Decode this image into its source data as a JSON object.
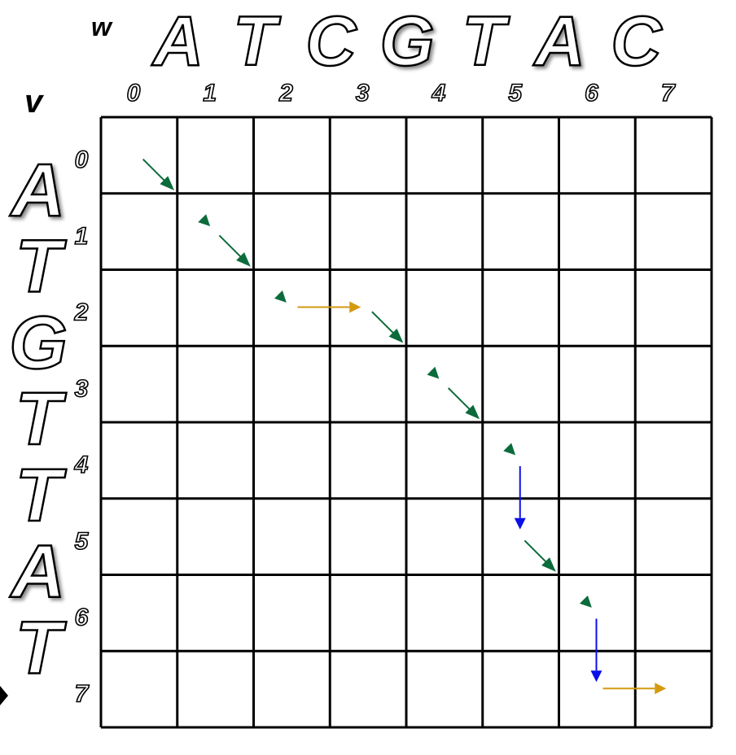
{
  "w_label": "w",
  "v_label": "v",
  "w_sequence": [
    "A",
    "T",
    "C",
    "G",
    "T",
    "A",
    "C"
  ],
  "v_sequence": [
    "A",
    "T",
    "G",
    "T",
    "T",
    "A",
    "T"
  ],
  "col_indices": [
    "0",
    "1",
    "2",
    "3",
    "4",
    "5",
    "6",
    "7"
  ],
  "row_indices": [
    "0",
    "1",
    "2",
    "3",
    "4",
    "5",
    "6",
    "7"
  ],
  "path": [
    {
      "from": [
        0,
        0
      ],
      "to": [
        1,
        1
      ],
      "kind": "match"
    },
    {
      "from": [
        1,
        1
      ],
      "to": [
        2,
        2
      ],
      "kind": "match"
    },
    {
      "from": [
        2,
        2
      ],
      "to": [
        2,
        3
      ],
      "kind": "insertion"
    },
    {
      "from": [
        2,
        3
      ],
      "to": [
        3,
        4
      ],
      "kind": "match"
    },
    {
      "from": [
        3,
        4
      ],
      "to": [
        4,
        5
      ],
      "kind": "match"
    },
    {
      "from": [
        4,
        5
      ],
      "to": [
        5,
        5
      ],
      "kind": "deletion"
    },
    {
      "from": [
        5,
        5
      ],
      "to": [
        6,
        6
      ],
      "kind": "match"
    },
    {
      "from": [
        6,
        6
      ],
      "to": [
        7,
        6
      ],
      "kind": "deletion"
    },
    {
      "from": [
        7,
        6
      ],
      "to": [
        7,
        7
      ],
      "kind": "insertion"
    }
  ],
  "colors": {
    "match": "#0b6b3a",
    "insertion": "#d49a10",
    "deletion": "#0a10e8",
    "grid": "#000000"
  }
}
